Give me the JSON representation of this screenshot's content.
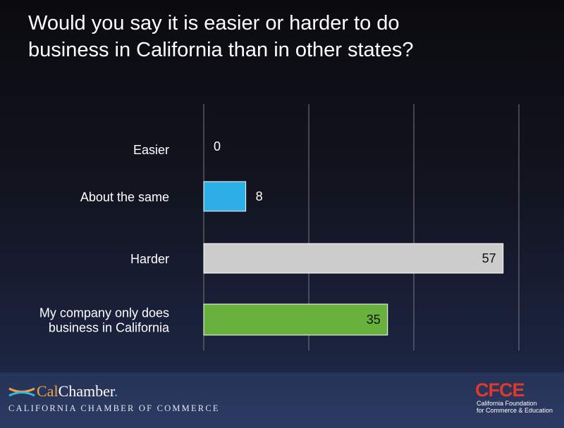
{
  "title_lines": [
    "Would you say it is easier or harder to do",
    "business in California than in other states?"
  ],
  "chart_data": {
    "type": "bar",
    "orientation": "horizontal",
    "title": "Would you say it is easier or harder to do business in California than in other states?",
    "categories": [
      {
        "lines": [
          "Easier"
        ]
      },
      {
        "lines": [
          "About the same"
        ]
      },
      {
        "lines": [
          "Harder"
        ]
      },
      {
        "lines": [
          "My company only does",
          "business in California"
        ]
      }
    ],
    "values": [
      0,
      8,
      57,
      35
    ],
    "value_labels": [
      "0",
      "8",
      "57",
      "35"
    ],
    "bar_colors": [
      "#2eaee6",
      "#2eaee6",
      "#cccccc",
      "#67b13c"
    ],
    "xlim": [
      0,
      60
    ],
    "gridlines": [
      0,
      20,
      40,
      60
    ],
    "grid": true,
    "legend": "none"
  },
  "footer": {
    "calchamber_prefix": "Cal",
    "calchamber_suffix": "Chamber",
    "calchamber_mark": ".",
    "calchamber_subtitle": "CALIFORNIA CHAMBER OF COMMERCE",
    "cfce_mark": "CFCE",
    "cfce_line1": "California Foundation",
    "cfce_line2": "for Commerce & Education"
  },
  "colors": {
    "grid": "#7a7a7a",
    "label_text": "#ffffff",
    "inside_label_text": "#111111",
    "cal_accent": "#f2a341",
    "cfce_red": "#e0382c"
  }
}
